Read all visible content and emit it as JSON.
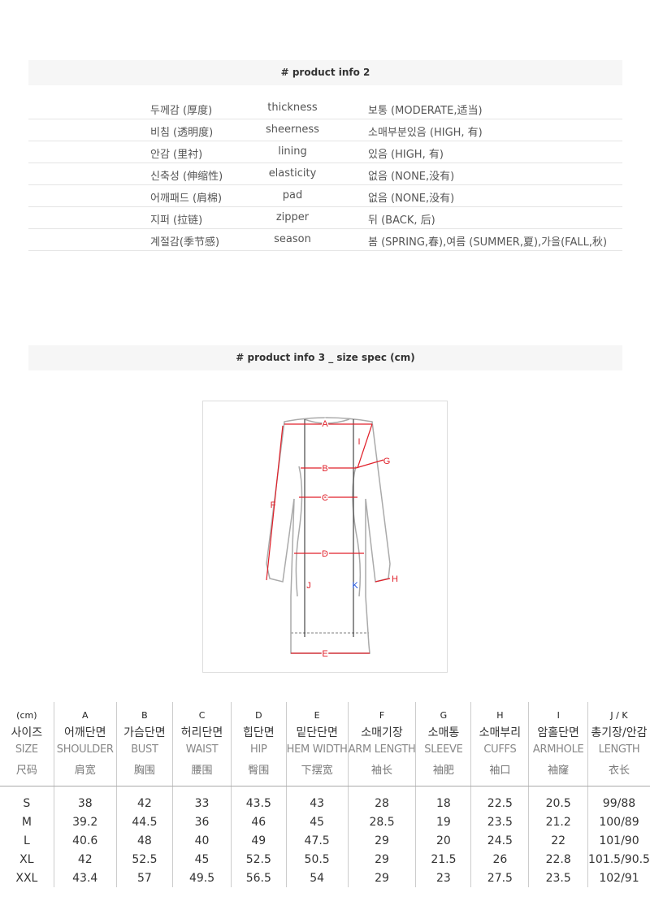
{
  "section2": {
    "title": "# product info 2",
    "rows": [
      {
        "ko": "두께감 (厚度)",
        "en": "thickness",
        "value": "보통 (MODERATE,适当)"
      },
      {
        "ko": "비침 (透明度)",
        "en": "sheerness",
        "value": "소매부분있음 (HIGH, 有)"
      },
      {
        "ko": "안감 (里衬)",
        "en": "lining",
        "value": "있음 (HIGH, 有)"
      },
      {
        "ko": "신축성 (伸缩性)",
        "en": "elasticity",
        "value": "없음 (NONE,没有)"
      },
      {
        "ko": "어깨패드 (肩棉)",
        "en": "pad",
        "value": "없음 (NONE,没有)"
      },
      {
        "ko": "지퍼 (拉链)",
        "en": "zipper",
        "value": "뒤 (BACK, 后)"
      },
      {
        "ko": "계절감(季节感)",
        "en": "season",
        "value": "봄 (SPRING,春),여름 (SUMMER,夏),가을(FALL,秋)"
      }
    ]
  },
  "section3": {
    "title": "# product info 3 _ size spec (cm)",
    "diagram_labels": [
      "A",
      "B",
      "C",
      "D",
      "E",
      "F",
      "G",
      "H",
      "I",
      "J",
      "K"
    ],
    "colors": {
      "measure": "#e0202a",
      "inner": "#1a50e0",
      "outline": "#aaaaaa"
    }
  },
  "size_table": {
    "columns": [
      {
        "letter": "(cm)",
        "ko": "사이즈",
        "en": "SIZE",
        "zh": "尺码"
      },
      {
        "letter": "A",
        "ko": "어깨단면",
        "en": "SHOULDER",
        "zh": "肩宽"
      },
      {
        "letter": "B",
        "ko": "가슴단면",
        "en": "BUST",
        "zh": "胸围"
      },
      {
        "letter": "C",
        "ko": "허리단면",
        "en": "WAIST",
        "zh": "腰围"
      },
      {
        "letter": "D",
        "ko": "힙단면",
        "en": "HIP",
        "zh": "臀围"
      },
      {
        "letter": "E",
        "ko": "밑단단면",
        "en": "HEM WIDTH",
        "zh": "下摆宽"
      },
      {
        "letter": "F",
        "ko": "소매기장",
        "en": "ARM LENGTH",
        "zh": "袖长"
      },
      {
        "letter": "G",
        "ko": "소매통",
        "en": "SLEEVE",
        "zh": "袖肥"
      },
      {
        "letter": "H",
        "ko": "소매부리",
        "en": "CUFFS",
        "zh": "袖口"
      },
      {
        "letter": "I",
        "ko": "암홀단면",
        "en": "ARMHOLE",
        "zh": "袖窿"
      },
      {
        "letter": "J / K",
        "ko": "총기장/안감",
        "en": "LENGTH",
        "zh": "衣长"
      }
    ],
    "rows": [
      [
        "S",
        "38",
        "42",
        "33",
        "43.5",
        "43",
        "28",
        "18",
        "22.5",
        "20.5",
        "99/88"
      ],
      [
        "M",
        "39.2",
        "44.5",
        "36",
        "46",
        "45",
        "28.5",
        "19",
        "23.5",
        "21.2",
        "100/89"
      ],
      [
        "L",
        "40.6",
        "48",
        "40",
        "49",
        "47.5",
        "29",
        "20",
        "24.5",
        "22",
        "101/90"
      ],
      [
        "XL",
        "42",
        "52.5",
        "45",
        "52.5",
        "50.5",
        "29",
        "21.5",
        "26",
        "22.8",
        "101.5/90.5"
      ],
      [
        "XXL",
        "43.4",
        "57",
        "49.5",
        "56.5",
        "54",
        "29",
        "23",
        "27.5",
        "23.5",
        "102/91"
      ]
    ]
  }
}
